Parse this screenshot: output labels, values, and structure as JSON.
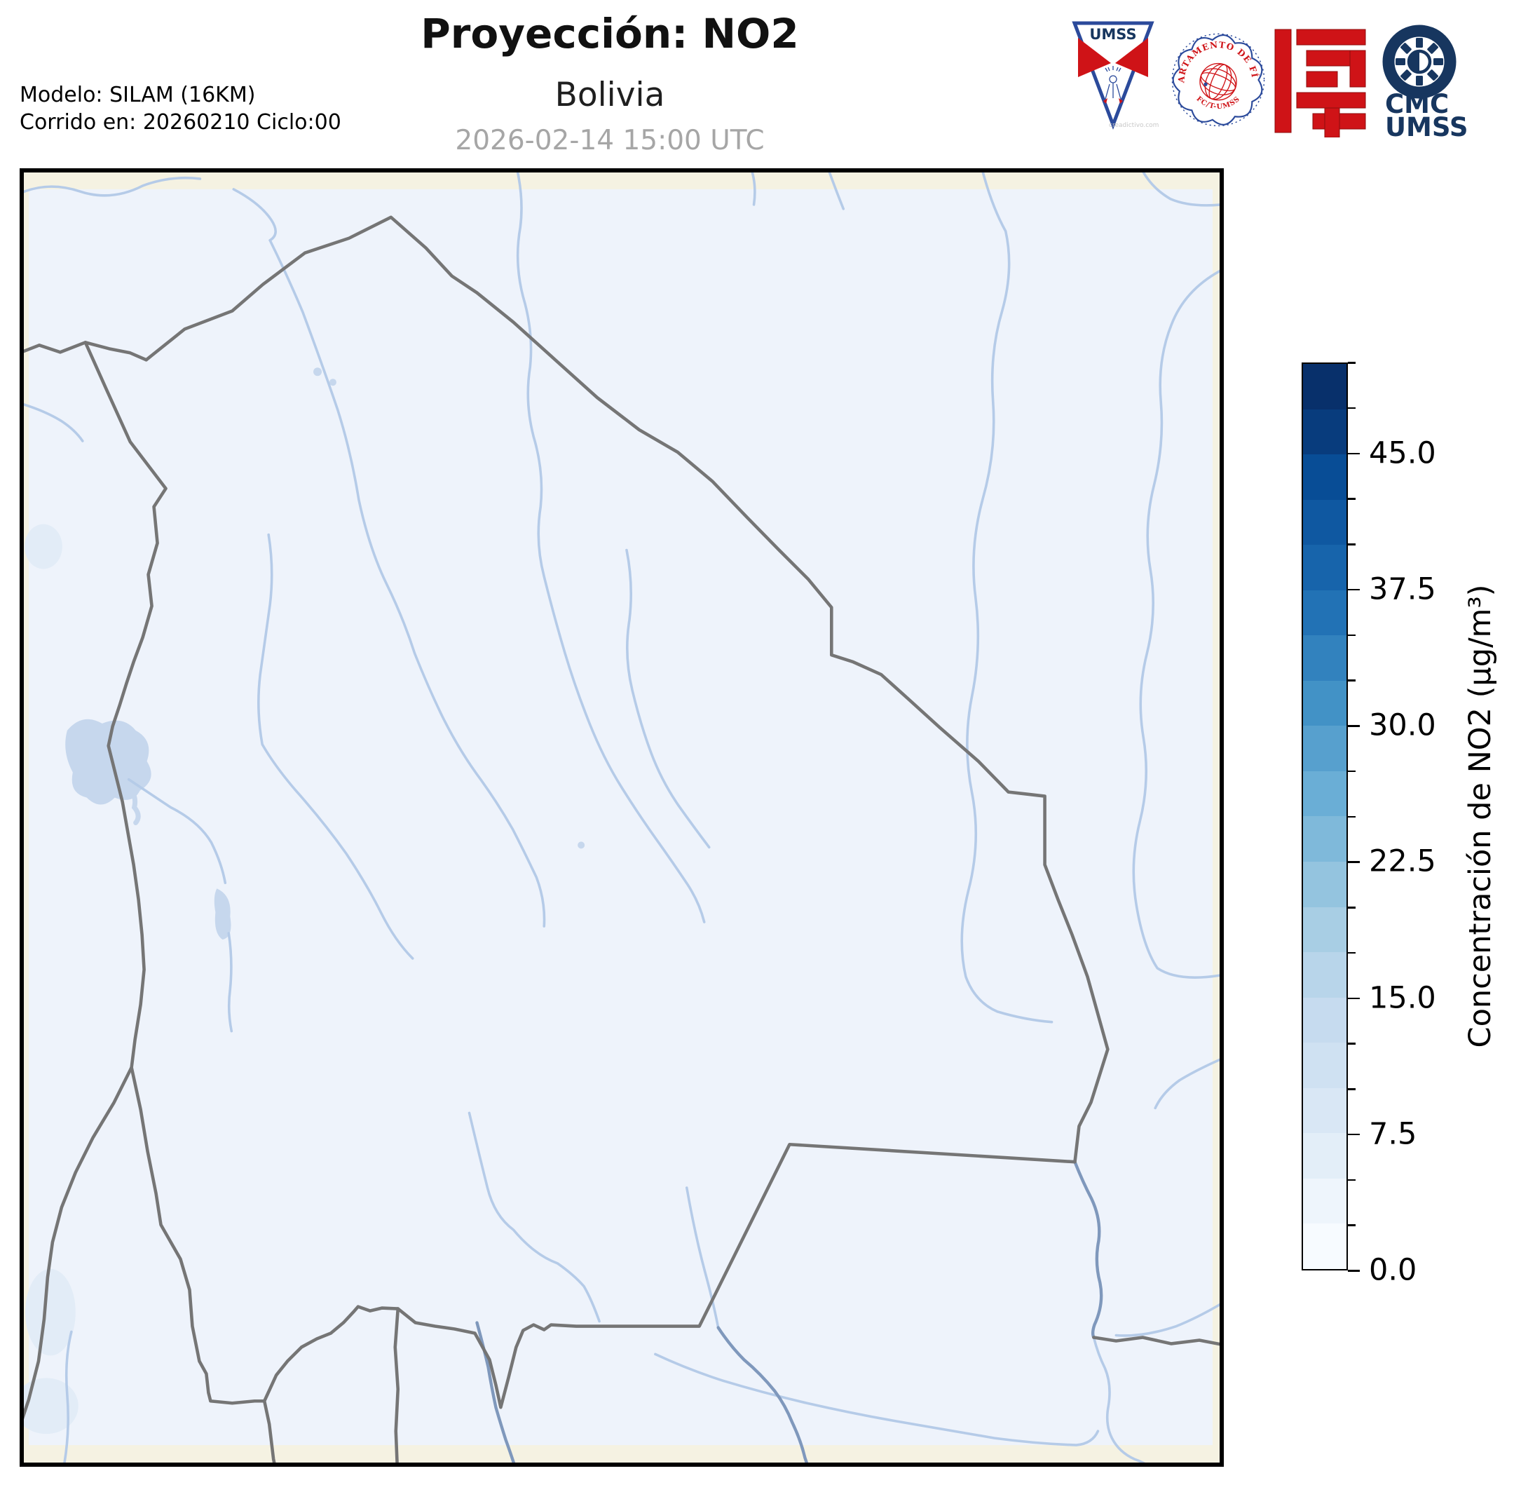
{
  "header": {
    "title": "Proyección: NO2",
    "subtitle": "Bolivia",
    "datetime": "2026-02-14 15:00 UTC",
    "model_line1": "Modelo: SILAM (16KM)",
    "model_line2": "Corrido en: 20260210 Ciclo:00"
  },
  "logos": {
    "umss_label": "UMSS",
    "fisica_top_text": "DEPARTAMENTO DE FÍSICA",
    "fisica_bottom_text": "FC/T-UMSS",
    "cmc_line1": "CMC",
    "cmc_line2": "UMSS",
    "watermark": "creadictivo.com"
  },
  "map": {
    "region": "Bolivia",
    "features": [
      "national-borders",
      "rivers",
      "lake-titicaca",
      "lake-poopo",
      "salt-flats"
    ]
  },
  "colorbar": {
    "label": "Concentración de NO2 (µg/m³)",
    "vmin": 0,
    "vmax": 50,
    "minor_step": 2.5,
    "major_ticks": [
      {
        "label": "45.0",
        "value": 45.0
      },
      {
        "label": "37.5",
        "value": 37.5
      },
      {
        "label": "30.0",
        "value": 30.0
      },
      {
        "label": "22.5",
        "value": 22.5
      },
      {
        "label": "15.0",
        "value": 15.0
      },
      {
        "label": "7.5",
        "value": 7.5
      },
      {
        "label": "0.0",
        "value": 0.0
      }
    ],
    "colors_low_to_high": [
      "#f7fbff",
      "#eef5fc",
      "#e3eef8",
      "#d9e7f5",
      "#cfe1f2",
      "#c6dbef",
      "#b8d5ea",
      "#a8cee4",
      "#94c4df",
      "#7fb9da",
      "#6aaed6",
      "#57a0ce",
      "#4292c6",
      "#3282be",
      "#2272b5",
      "#1764ab",
      "#0f58a1",
      "#084d96",
      "#083c7d",
      "#08306b"
    ]
  },
  "theme": {
    "css_vars": {
      "--c-mapbg": "#eef3fb",
      "--c-beige": "#f5f2e2",
      "--c-river": "#b5cbe8",
      "--c-riverdark": "#7f98bc",
      "--c-borderline": "#757575",
      "--c-lake": "#c6d7ed",
      "--c-patch": "#e2ecf7",
      "--c-navy": "#17365f",
      "--c-logored": "#cf1317",
      "--c-logoblue": "#2b4a9b",
      "--c-datetext": "#a6a6a6"
    }
  }
}
